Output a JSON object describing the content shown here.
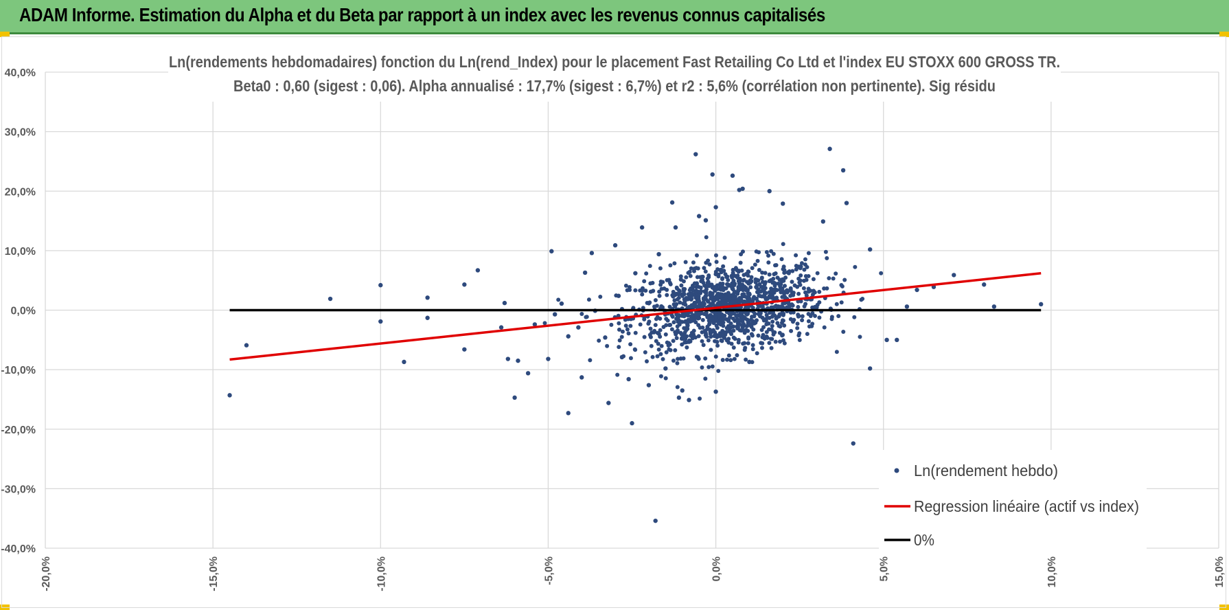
{
  "banner": {
    "title": "ADAM Informe. Estimation du Alpha et du Beta par rapport à un index avec les revenus connus capitalisés",
    "background": "#7dc67d",
    "accent": "#f2c200"
  },
  "chart_data": {
    "type": "scatter",
    "title_line1": "Ln(rendements hebdomadaires) fonction du Ln(rend_Index) pour le placement Fast Retailing Co Ltd et l'index EU STOXX 600 GROSS TR.",
    "title_line2": "Beta0 : 0,60 (sigest : 0,06). Alpha annualisé : 17,7% (sigest : 6,7%) et r2 : 5,6% (corrélation non pertinente). Sig résidu",
    "xlim": [
      -20,
      15
    ],
    "ylim": [
      -40,
      40
    ],
    "x_ticks": [
      "-20,0%",
      "-15,0%",
      "-10,0%",
      "-5,0%",
      "0,0%",
      "5,0%",
      "10,0%",
      "15,0%"
    ],
    "y_ticks": [
      "40,0%",
      "30,0%",
      "20,0%",
      "10,0%",
      "0,0%",
      "-10,0%",
      "-20,0%",
      "-30,0%",
      "-40,0%"
    ],
    "grid": true,
    "legend_position": "bottom-right",
    "series": [
      {
        "name": "Ln(rendement hebdo)",
        "kind": "scatter",
        "color": "#2e4a7d",
        "points": [
          [
            -14.5,
            -14.3
          ],
          [
            -14.0,
            -5.9
          ],
          [
            -11.5,
            1.9
          ],
          [
            -10.0,
            4.2
          ],
          [
            -10.0,
            -1.9
          ],
          [
            -9.3,
            -8.7
          ],
          [
            -8.6,
            2.1
          ],
          [
            -8.6,
            -1.3
          ],
          [
            -7.5,
            4.3
          ],
          [
            -7.5,
            -6.6
          ],
          [
            -7.1,
            6.7
          ],
          [
            -6.4,
            -2.9
          ],
          [
            -6.3,
            1.2
          ],
          [
            -6.2,
            -8.2
          ],
          [
            -6.0,
            -14.7
          ],
          [
            -5.9,
            -8.5
          ],
          [
            -5.6,
            -10.6
          ],
          [
            -5.4,
            -2.4
          ],
          [
            -5.0,
            -8.2
          ],
          [
            -4.9,
            9.9
          ],
          [
            -4.8,
            -0.7
          ],
          [
            -4.6,
            1.1
          ],
          [
            -4.4,
            -17.3
          ],
          [
            -4.4,
            -4.4
          ],
          [
            -4.1,
            -2.9
          ],
          [
            -4.0,
            -11.3
          ],
          [
            -3.9,
            6.3
          ],
          [
            -3.7,
            9.6
          ],
          [
            -3.6,
            -0.1
          ],
          [
            -3.3,
            -4.6
          ],
          [
            -3.2,
            -15.6
          ],
          [
            -3.0,
            10.9
          ],
          [
            -2.9,
            2.4
          ],
          [
            -2.8,
            -7.9
          ],
          [
            -2.6,
            -11.6
          ],
          [
            -2.5,
            -19.0
          ],
          [
            -2.4,
            6.2
          ],
          [
            -2.2,
            13.9
          ],
          [
            -2.0,
            -12.6
          ],
          [
            -1.8,
            -35.4
          ],
          [
            -1.7,
            9.4
          ],
          [
            -1.5,
            -9.8
          ],
          [
            -1.3,
            18.1
          ],
          [
            -1.2,
            13.9
          ],
          [
            -1.1,
            -14.7
          ],
          [
            -1.0,
            -13.5
          ],
          [
            -0.8,
            -15.1
          ],
          [
            -0.6,
            26.2
          ],
          [
            -0.5,
            15.8
          ],
          [
            -0.3,
            15.1
          ],
          [
            -0.1,
            22.8
          ],
          [
            0.0,
            17.3
          ],
          [
            0.0,
            -13.7
          ],
          [
            0.5,
            22.6
          ],
          [
            0.7,
            20.2
          ],
          [
            0.8,
            20.4
          ],
          [
            1.0,
            -8.7
          ],
          [
            1.6,
            20.0
          ],
          [
            2.0,
            17.9
          ],
          [
            3.2,
            14.9
          ],
          [
            3.4,
            27.1
          ],
          [
            3.8,
            23.5
          ],
          [
            3.9,
            18.0
          ],
          [
            4.1,
            -22.4
          ],
          [
            4.6,
            10.2
          ],
          [
            4.6,
            -9.8
          ],
          [
            5.1,
            -5.0
          ],
          [
            5.4,
            -5.0
          ],
          [
            5.7,
            0.6
          ],
          [
            6.0,
            3.4
          ],
          [
            6.5,
            3.9
          ],
          [
            7.1,
            5.9
          ],
          [
            8.0,
            4.3
          ],
          [
            8.3,
            0.6
          ],
          [
            9.7,
            1.0
          ]
        ]
      },
      {
        "name": "Regression linéaire (actif vs index)",
        "kind": "line",
        "color": "#e00000",
        "x": [
          -14.5,
          9.7
        ],
        "y": [
          -8.3,
          6.2
        ]
      },
      {
        "name": "0%",
        "kind": "line",
        "color": "#000000",
        "x": [
          -14.5,
          9.7
        ],
        "y": [
          0,
          0
        ]
      }
    ]
  }
}
